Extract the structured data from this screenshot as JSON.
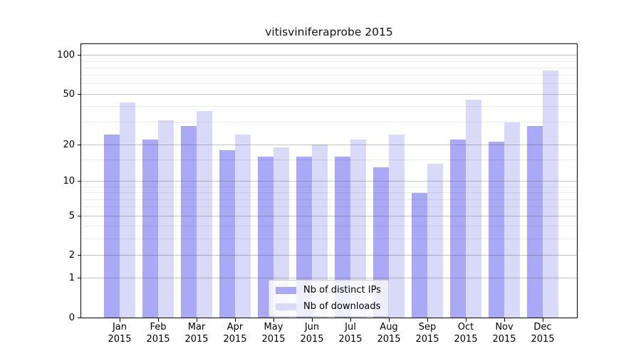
{
  "title": "vitisviniferaprobe 2015",
  "chart_data": {
    "type": "bar",
    "title": "vitisviniferaprobe 2015",
    "categories": [
      "Jan",
      "Feb",
      "Mar",
      "Apr",
      "May",
      "Jun",
      "Jul",
      "Aug",
      "Sep",
      "Oct",
      "Nov",
      "Dec"
    ],
    "year_label": "2015",
    "series": [
      {
        "name": "Nb of distinct IPs",
        "color": "#a9a9f6",
        "values": [
          24,
          22,
          28,
          18,
          16,
          16,
          16,
          13,
          8,
          22,
          21,
          28
        ]
      },
      {
        "name": "Nb of downloads",
        "color": "#d9d9f8",
        "values": [
          43,
          31,
          37,
          24,
          19,
          20,
          22,
          24,
          14,
          45,
          30,
          76
        ]
      }
    ],
    "yscale": "log1p",
    "ylim": [
      0,
      122
    ],
    "y_major_ticks": [
      0,
      1,
      2,
      5,
      10,
      20,
      50,
      100
    ],
    "y_minor_ticks": [
      3,
      4,
      6,
      7,
      8,
      9,
      15,
      30,
      40,
      60,
      70,
      80,
      90
    ],
    "grid": true,
    "legend_position": "bottom-center"
  },
  "legend": {
    "items": [
      {
        "label": "Nb of distinct IPs"
      },
      {
        "label": "Nb of downloads"
      }
    ]
  }
}
